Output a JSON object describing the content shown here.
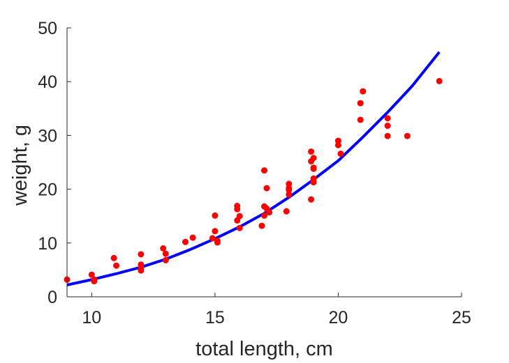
{
  "chart_data": {
    "type": "scatter",
    "title": "",
    "xlabel": "total length, cm",
    "ylabel": "weight, g",
    "xlim": [
      9,
      25
    ],
    "ylim": [
      0,
      50
    ],
    "xticks": [
      10,
      15,
      20,
      25
    ],
    "yticks": [
      0,
      10,
      20,
      30,
      40,
      50
    ],
    "grid": false,
    "legend": "none",
    "series": [
      {
        "kind": "points",
        "color": "#ff0000",
        "x": [
          9,
          10,
          10.1,
          10.1,
          10.9,
          11,
          12,
          12,
          12,
          12,
          12.9,
          13,
          13,
          13.8,
          14.1,
          14.9,
          15,
          15,
          15.1,
          15.1,
          15.9,
          15.9,
          15.9,
          16,
          16,
          16.9,
          17,
          17,
          17,
          17.1,
          17.1,
          17.2,
          17.9,
          18,
          18,
          18,
          18,
          18.9,
          18.9,
          18.9,
          19,
          19,
          19,
          19,
          19,
          20,
          20,
          20.1,
          20.9,
          20.9,
          21,
          22,
          22,
          22,
          22.8,
          24.1
        ],
        "y": [
          3.2,
          4.1,
          3.2,
          2.9,
          7.2,
          5.8,
          7.9,
          6.0,
          5.3,
          4.9,
          9.0,
          8.0,
          6.8,
          10.2,
          11.0,
          10.9,
          15.1,
          12.2,
          10.4,
          10.1,
          16.9,
          16.3,
          14.2,
          15.0,
          12.8,
          13.2,
          23.5,
          16.8,
          15.1,
          20.2,
          16.4,
          15.7,
          15.9,
          19.0,
          19.9,
          20.2,
          21.0,
          27.0,
          18.1,
          25.2,
          25.8,
          24.0,
          23.8,
          22.0,
          21.3,
          28.2,
          29.0,
          26.6,
          32.9,
          36.0,
          38.2,
          33.2,
          31.8,
          29.9,
          29.9,
          40.1
        ]
      },
      {
        "kind": "fit-curve",
        "color": "#0000ff",
        "x": [
          9,
          10,
          11,
          12,
          13,
          14,
          15,
          16,
          17,
          18,
          19,
          20,
          21,
          22,
          23,
          24.1
        ],
        "y": [
          2.2,
          3.2,
          4.3,
          5.5,
          7.0,
          8.8,
          10.8,
          13.0,
          15.5,
          18.5,
          21.8,
          25.3,
          29.7,
          34.3,
          39.2,
          45.5
        ]
      }
    ]
  }
}
